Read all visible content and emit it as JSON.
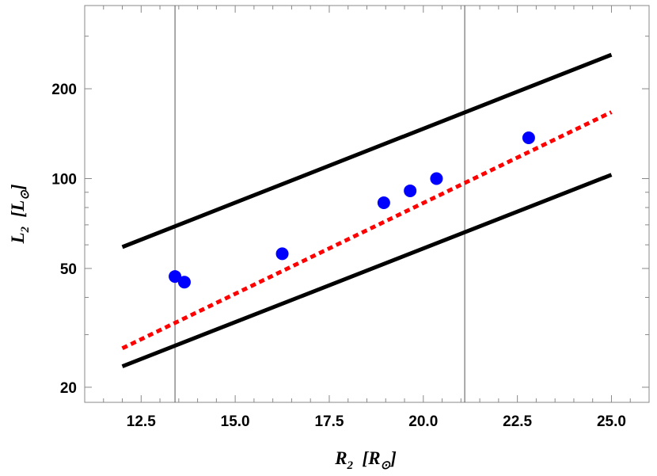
{
  "chart_data": {
    "type": "scatter",
    "xlabel": {
      "main": "R",
      "sub": "2",
      "unit_open": "[",
      "unit": "R",
      "unit_sub": "⊙",
      "unit_close": "]"
    },
    "ylabel": {
      "main": "L",
      "sub": "2",
      "unit_open": "[",
      "unit": "L",
      "unit_sub": "⊙",
      "unit_close": "]"
    },
    "xlim": [
      11.0,
      26.0
    ],
    "ylim": [
      17.8,
      380
    ],
    "yscale": "log",
    "grid": false,
    "x_ticks": [
      {
        "value": 12.5,
        "label": "12.5"
      },
      {
        "value": 15.0,
        "label": "15.0"
      },
      {
        "value": 17.5,
        "label": "17.5"
      },
      {
        "value": 20.0,
        "label": "20.0"
      },
      {
        "value": 22.5,
        "label": "22.5"
      },
      {
        "value": 25.0,
        "label": "25.0"
      }
    ],
    "x_minor_step": 0.5,
    "y_ticks": [
      {
        "value": 20,
        "label": "20"
      },
      {
        "value": 50,
        "label": "50"
      },
      {
        "value": 100,
        "label": "100"
      },
      {
        "value": 200,
        "label": "200"
      }
    ],
    "y_minor": [
      30,
      40,
      60,
      70,
      80,
      90,
      300
    ],
    "vertical_lines": [
      13.4,
      21.1
    ],
    "series": [
      {
        "style": "solid",
        "color": "#000000",
        "x": [
          12.0,
          25.0
        ],
        "y": [
          59.0,
          260.0
        ]
      },
      {
        "style": "solid",
        "color": "#000000",
        "x": [
          12.0,
          25.0
        ],
        "y": [
          23.5,
          103.0
        ]
      },
      {
        "style": "dotted",
        "color": "#ff0000",
        "x": [
          12.0,
          25.0
        ],
        "y": [
          27.0,
          167.0
        ]
      },
      {
        "style": "points",
        "color": "#0000ff",
        "x": [
          13.4,
          13.65,
          16.25,
          18.95,
          19.65,
          20.35,
          22.8
        ],
        "y": [
          47.0,
          45.0,
          56.0,
          83.0,
          91.0,
          100.0,
          137.0
        ]
      }
    ]
  }
}
